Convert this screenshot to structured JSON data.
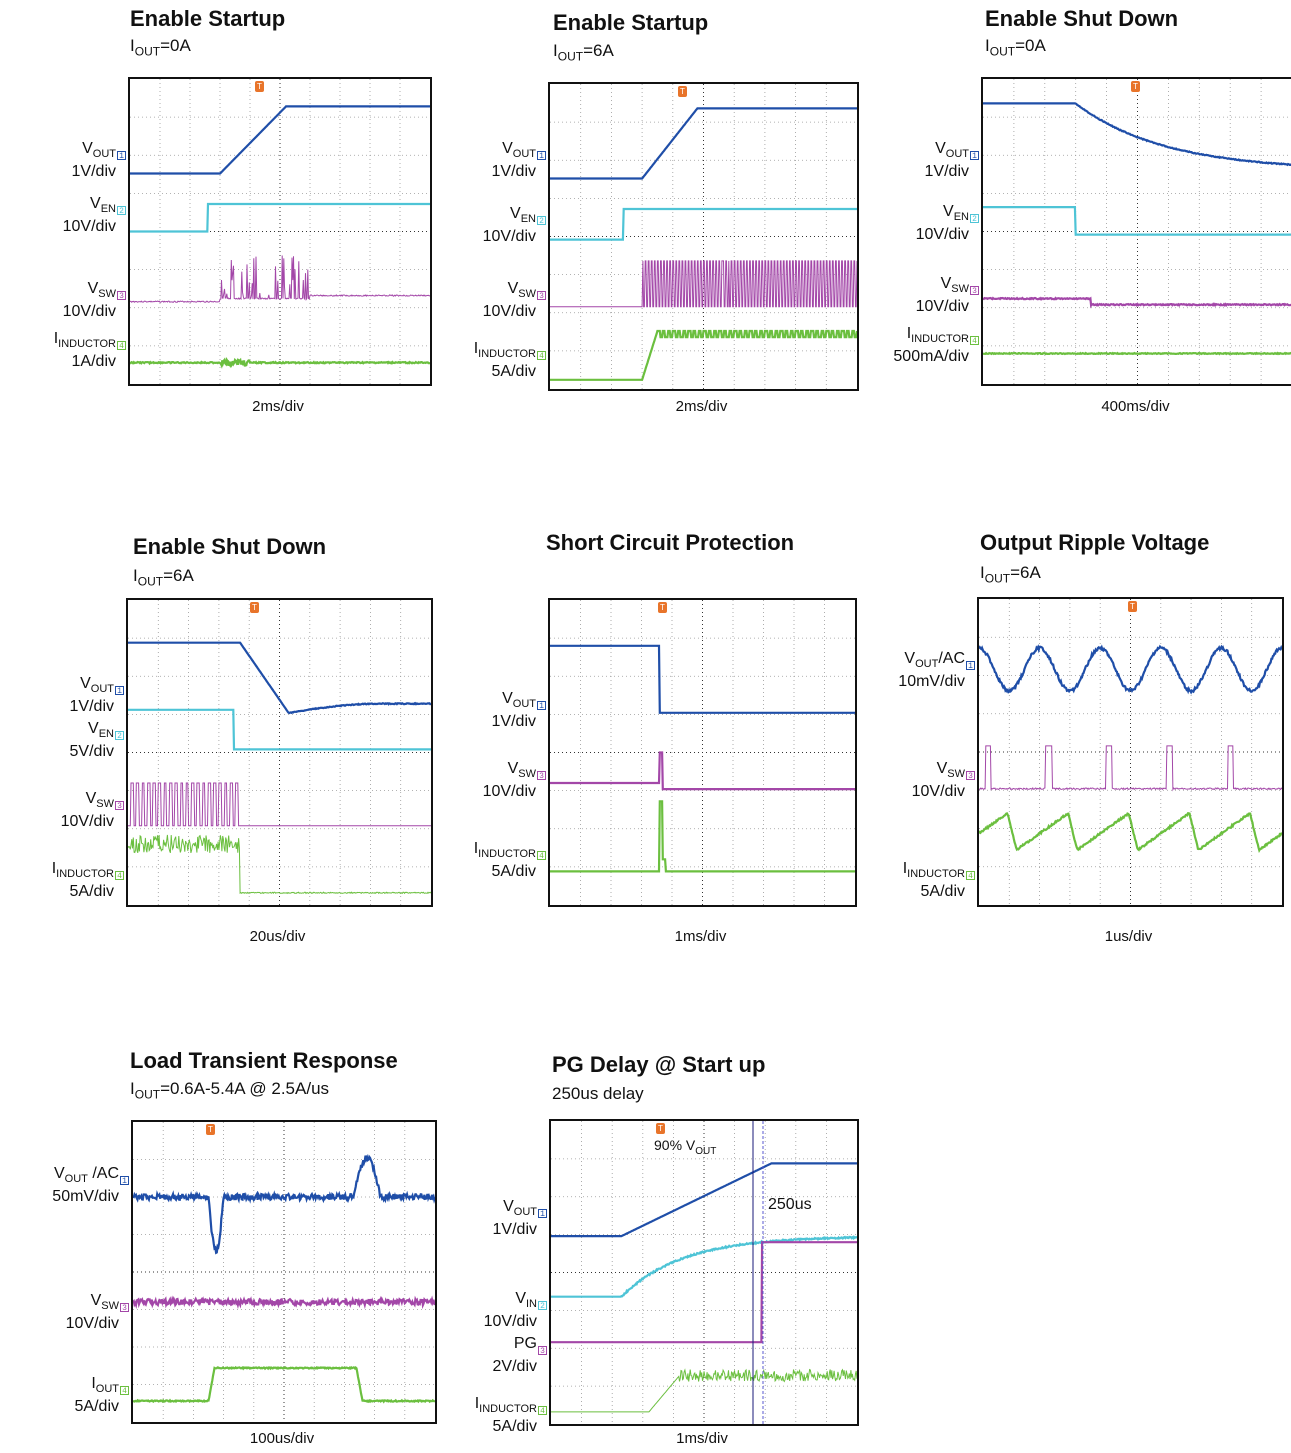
{
  "colors": {
    "ch1": "#1f4ea8",
    "ch2": "#4ec4d6",
    "ch3": "#a347a8",
    "ch4": "#6bbf3f",
    "trigger": "#e8742a"
  },
  "panels": [
    {
      "title": "Enable Startup",
      "subtitle_main": "I",
      "subtitle_sub": "OUT",
      "subtitle_rest": "=0A",
      "timebase": "2ms/div",
      "channels": [
        {
          "name": "V",
          "sub": "OUT",
          "scale": "1V/div",
          "mark": "1"
        },
        {
          "name": "V",
          "sub": "EN",
          "scale": "10V/div",
          "mark": "2"
        },
        {
          "name": "V",
          "sub": "SW",
          "scale": "10V/div",
          "mark": "3"
        },
        {
          "name": "I",
          "sub": "INDUCTOR",
          "scale": "1A/div",
          "mark": "4"
        }
      ]
    },
    {
      "title": "Enable Startup",
      "subtitle_main": "I",
      "subtitle_sub": "OUT",
      "subtitle_rest": "=6A",
      "timebase": "2ms/div",
      "channels": [
        {
          "name": "V",
          "sub": "OUT",
          "scale": "1V/div",
          "mark": "1"
        },
        {
          "name": "V",
          "sub": "EN",
          "scale": "10V/div",
          "mark": "2"
        },
        {
          "name": "V",
          "sub": "SW",
          "scale": "10V/div",
          "mark": "3"
        },
        {
          "name": "I",
          "sub": "INDUCTOR",
          "scale": "5A/div",
          "mark": "4"
        }
      ]
    },
    {
      "title": "Enable Shut Down",
      "subtitle_main": "I",
      "subtitle_sub": "OUT",
      "subtitle_rest": "=0A",
      "timebase": "400ms/div",
      "channels": [
        {
          "name": "V",
          "sub": "OUT",
          "scale": "1V/div",
          "mark": "1"
        },
        {
          "name": "V",
          "sub": "EN",
          "scale": "10V/div",
          "mark": "2"
        },
        {
          "name": "V",
          "sub": "SW",
          "scale": "10V/div",
          "mark": "3"
        },
        {
          "name": "I",
          "sub": "INDUCTOR",
          "scale": "500mA/div",
          "mark": "4"
        }
      ]
    },
    {
      "title": "Enable Shut Down",
      "subtitle_main": "I",
      "subtitle_sub": "OUT",
      "subtitle_rest": "=6A",
      "timebase": "20us/div",
      "channels": [
        {
          "name": "V",
          "sub": "OUT",
          "scale": "1V/div",
          "mark": "1"
        },
        {
          "name": "V",
          "sub": "EN",
          "scale": "5V/div",
          "mark": "2"
        },
        {
          "name": "V",
          "sub": "SW",
          "scale": "10V/div",
          "mark": "3"
        },
        {
          "name": "I",
          "sub": "INDUCTOR",
          "scale": "5A/div",
          "mark": "4"
        }
      ]
    },
    {
      "title": "Short Circuit Protection",
      "subtitle_main": "",
      "subtitle_sub": "",
      "subtitle_rest": "",
      "timebase": "1ms/div",
      "channels": [
        {
          "name": "V",
          "sub": "OUT",
          "scale": "1V/div",
          "mark": "1"
        },
        {
          "name": "V",
          "sub": "SW",
          "scale": "10V/div",
          "mark": "3"
        },
        {
          "name": "I",
          "sub": "INDUCTOR",
          "scale": "5A/div",
          "mark": "4"
        }
      ]
    },
    {
      "title": "Output Ripple Voltage",
      "subtitle_main": "I",
      "subtitle_sub": "OUT",
      "subtitle_rest": "=6A",
      "timebase": "1us/div",
      "channels": [
        {
          "name": "V",
          "sub": "OUT",
          "suffix": "/AC",
          "scale": "10mV/div",
          "mark": "1"
        },
        {
          "name": "V",
          "sub": "SW",
          "scale": "10V/div",
          "mark": "3"
        },
        {
          "name": "I",
          "sub": "INDUCTOR",
          "scale": "5A/div",
          "mark": "4"
        }
      ]
    },
    {
      "title": "Load Transient Response",
      "subtitle_main": "I",
      "subtitle_sub": "OUT",
      "subtitle_rest": "=0.6A-5.4A @ 2.5A/us",
      "timebase": "100us/div",
      "channels": [
        {
          "name": "V",
          "sub": "OUT",
          "suffix": " /AC",
          "scale": "50mV/div",
          "mark": "1"
        },
        {
          "name": "V",
          "sub": "SW",
          "scale": "10V/div",
          "mark": "3"
        },
        {
          "name": "I",
          "sub": "OUT",
          "scale": "5A/div",
          "mark": "4"
        }
      ]
    },
    {
      "title": "PG Delay @ Start up",
      "subtitle_main": "",
      "subtitle_sub": "",
      "subtitle_rest": "250us delay",
      "timebase": "1ms/div",
      "channels": [
        {
          "name": "V",
          "sub": "OUT",
          "scale": "1V/div",
          "mark": "1"
        },
        {
          "name": "V",
          "sub": "IN",
          "scale": "10V/div",
          "mark": "2"
        },
        {
          "name": "PG",
          "sub": "",
          "scale": "2V/div",
          "mark": "3"
        },
        {
          "name": "I",
          "sub": "INDUCTOR",
          "scale": "5A/div",
          "mark": "4"
        }
      ],
      "annotations": {
        "vout_pct_main": "90% V",
        "vout_pct_sub": "OUT",
        "delay": "250us"
      }
    }
  ],
  "chart_data": [
    {
      "type": "line",
      "title": "Enable Startup",
      "timebase": "2ms/div",
      "series": [
        {
          "name": "VOUT",
          "values": [
            [
              0,
              0.36
            ],
            [
              3,
              0.36
            ],
            [
              5.2,
              0.99
            ],
            [
              10,
              0.99
            ]
          ]
        },
        {
          "name": "VEN",
          "values": [
            [
              0,
              0
            ],
            [
              2.6,
              0
            ],
            [
              2.6,
              1
            ],
            [
              10,
              1
            ]
          ]
        },
        {
          "name": "VSW",
          "values": [
            [
              0,
              0
            ],
            [
              3,
              0
            ],
            [
              3,
              0.4
            ],
            [
              6,
              0
            ],
            [
              10,
              0
            ]
          ]
        },
        {
          "name": "IINDUCTOR",
          "values": [
            [
              0,
              0
            ],
            [
              3,
              0
            ],
            [
              3.5,
              0.1
            ],
            [
              4,
              0
            ],
            [
              10,
              0
            ]
          ]
        }
      ]
    },
    {
      "type": "line",
      "title": "Enable Startup",
      "timebase": "2ms/div",
      "series": [
        {
          "name": "VOUT",
          "values": [
            [
              0,
              0.36
            ],
            [
              3,
              0.36
            ],
            [
              4.8,
              1
            ],
            [
              10,
              1
            ]
          ]
        },
        {
          "name": "VEN",
          "values": [
            [
              0,
              0
            ],
            [
              2.4,
              0
            ],
            [
              2.4,
              1
            ],
            [
              10,
              1
            ]
          ]
        },
        {
          "name": "VSW",
          "values": [
            [
              0,
              0
            ],
            [
              3,
              0
            ],
            [
              3,
              1
            ],
            [
              10,
              1
            ]
          ]
        },
        {
          "name": "IINDUCTOR",
          "values": [
            [
              0,
              0
            ],
            [
              3,
              0
            ],
            [
              3.5,
              1
            ],
            [
              10,
              0.9
            ]
          ]
        }
      ]
    },
    {
      "type": "line",
      "title": "Enable Shut Down",
      "timebase": "400ms/div",
      "series": [
        {
          "name": "VOUT",
          "values": [
            [
              0,
              1
            ],
            [
              3,
              1
            ],
            [
              5,
              0.55
            ],
            [
              10,
              0.4
            ]
          ]
        },
        {
          "name": "VEN",
          "values": [
            [
              0,
              1
            ],
            [
              3,
              1
            ],
            [
              3,
              0
            ],
            [
              10,
              0
            ]
          ]
        },
        {
          "name": "VSW",
          "values": [
            [
              0,
              0.1
            ],
            [
              3,
              0.1
            ],
            [
              4,
              0
            ],
            [
              10,
              0
            ]
          ]
        },
        {
          "name": "IINDUCTOR",
          "values": [
            [
              0,
              0
            ],
            [
              10,
              0
            ]
          ]
        }
      ]
    },
    {
      "type": "line",
      "title": "Enable Shut Down",
      "timebase": "20us/div",
      "series": [
        {
          "name": "VOUT",
          "values": [
            [
              0,
              1
            ],
            [
              3.8,
              1
            ],
            [
              5.3,
              0.3
            ],
            [
              7,
              0.4
            ],
            [
              10,
              0.38
            ]
          ]
        },
        {
          "name": "VEN",
          "values": [
            [
              0,
              1
            ],
            [
              3.5,
              1
            ],
            [
              3.5,
              0
            ],
            [
              10,
              0
            ]
          ]
        },
        {
          "name": "VSW",
          "values": [
            [
              0,
              1
            ],
            [
              3.8,
              1
            ],
            [
              3.8,
              0
            ],
            [
              10,
              0
            ]
          ]
        },
        {
          "name": "IINDUCTOR",
          "values": [
            [
              0,
              1
            ],
            [
              3.8,
              1
            ],
            [
              3.8,
              0
            ],
            [
              10,
              0
            ]
          ]
        }
      ]
    },
    {
      "type": "line",
      "title": "Short Circuit Protection",
      "timebase": "1ms/div",
      "series": [
        {
          "name": "VOUT",
          "values": [
            [
              0,
              1
            ],
            [
              3.6,
              1
            ],
            [
              3.6,
              0
            ],
            [
              10,
              0
            ]
          ]
        },
        {
          "name": "VSW",
          "values": [
            [
              0,
              0.1
            ],
            [
              3.6,
              0.1
            ],
            [
              3.6,
              0
            ],
            [
              10,
              0
            ]
          ]
        },
        {
          "name": "IINDUCTOR",
          "values": [
            [
              0,
              0
            ],
            [
              3.6,
              0
            ],
            [
              3.6,
              1
            ],
            [
              3.7,
              0
            ],
            [
              10,
              0
            ]
          ]
        }
      ]
    },
    {
      "type": "line",
      "title": "Output Ripple Voltage",
      "timebase": "1us/div",
      "series": [
        {
          "name": "VOUT/AC",
          "values": [
            [
              0,
              0
            ],
            [
              1,
              1
            ],
            [
              2,
              0
            ],
            [
              3,
              1
            ],
            [
              4,
              0
            ],
            [
              5,
              1
            ],
            [
              6,
              0
            ],
            [
              7,
              1
            ],
            [
              8,
              0
            ],
            [
              9,
              1
            ],
            [
              10,
              0
            ]
          ]
        },
        {
          "name": "VSW",
          "values": [
            [
              0,
              0
            ],
            [
              1.1,
              0
            ],
            [
              1.1,
              1
            ],
            [
              1.4,
              1
            ],
            [
              1.4,
              0
            ],
            [
              10,
              0
            ]
          ]
        },
        {
          "name": "IINDUCTOR",
          "values": [
            [
              0,
              1
            ],
            [
              1.1,
              0
            ],
            [
              3,
              1
            ],
            [
              10,
              0
            ]
          ]
        }
      ]
    },
    {
      "type": "line",
      "title": "Load Transient Response",
      "timebase": "100us/div",
      "series": [
        {
          "name": "VOUT /AC",
          "values": [
            [
              0,
              0
            ],
            [
              2.6,
              0
            ],
            [
              2.8,
              -1
            ],
            [
              3.2,
              0
            ],
            [
              7.5,
              0
            ],
            [
              7.8,
              1
            ],
            [
              8.5,
              0
            ],
            [
              10,
              0
            ]
          ]
        },
        {
          "name": "VSW",
          "values": [
            [
              0,
              1
            ],
            [
              10,
              1
            ]
          ]
        },
        {
          "name": "IOUT",
          "values": [
            [
              0,
              0
            ],
            [
              2.6,
              0
            ],
            [
              2.8,
              1
            ],
            [
              7.5,
              1
            ],
            [
              7.7,
              0
            ],
            [
              10,
              0
            ]
          ]
        }
      ]
    },
    {
      "type": "line",
      "title": "PG Delay @ Start up",
      "timebase": "1ms/div",
      "series": [
        {
          "name": "VOUT",
          "values": [
            [
              0,
              0
            ],
            [
              2.3,
              0
            ],
            [
              7.1,
              1
            ],
            [
              10,
              1
            ]
          ]
        },
        {
          "name": "VIN",
          "values": [
            [
              0,
              0
            ],
            [
              2.2,
              0
            ],
            [
              4,
              0.6
            ],
            [
              6,
              0.9
            ],
            [
              10,
              1
            ]
          ]
        },
        {
          "name": "PG",
          "values": [
            [
              0,
              0
            ],
            [
              7.6,
              0
            ],
            [
              7.6,
              1
            ],
            [
              10,
              1
            ]
          ]
        },
        {
          "name": "IINDUCTOR",
          "values": [
            [
              0,
              0
            ],
            [
              3.2,
              0
            ],
            [
              4.4,
              1
            ],
            [
              10,
              0.9
            ]
          ]
        }
      ]
    }
  ]
}
